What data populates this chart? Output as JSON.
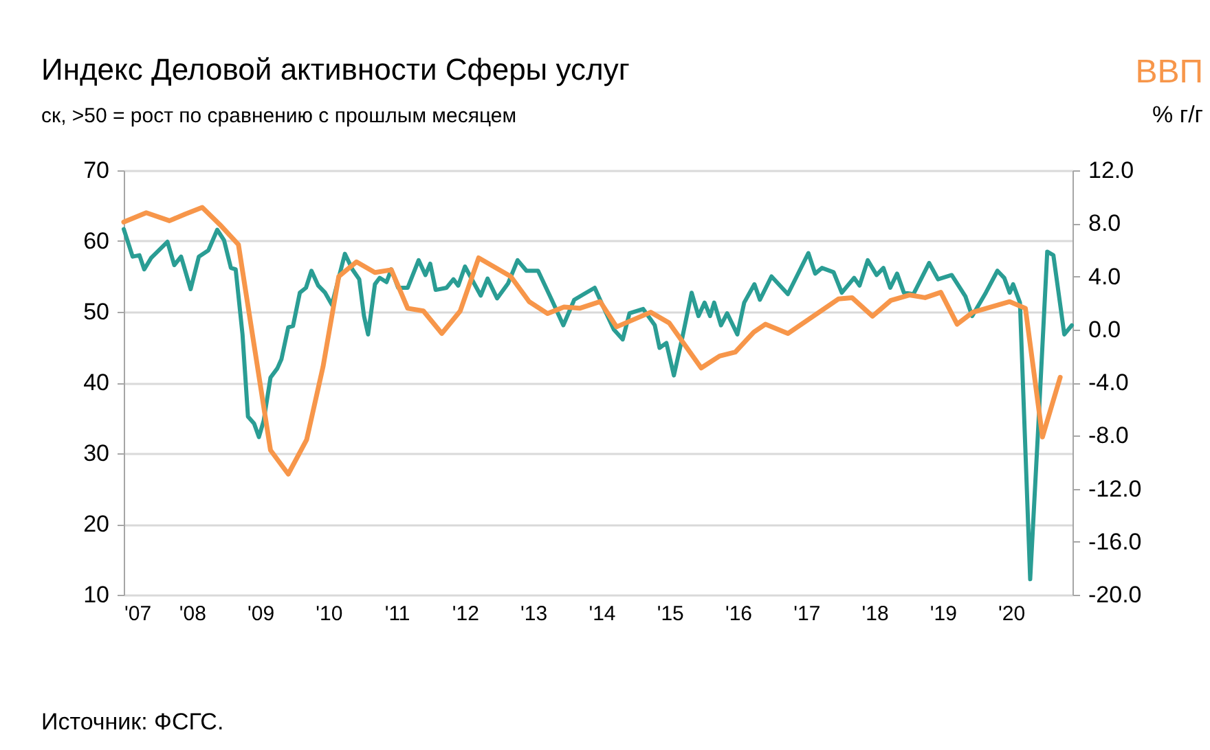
{
  "chart_data": {
    "type": "line",
    "title": "Индекс Деловой активности Сферы услуг",
    "ylabel": "ск, >50 = рост по сравнению с прошлым месяцем",
    "y2label": "% г/г",
    "annotations": [
      "Источник: ФСГС."
    ],
    "xlim": [
      2007,
      2020.9
    ],
    "xticks": [
      {
        "value": 2007,
        "label": "'07"
      },
      {
        "value": 2008,
        "label": "'08"
      },
      {
        "value": 2009,
        "label": "'09"
      },
      {
        "value": 2010,
        "label": "'10"
      },
      {
        "value": 2011,
        "label": "'11"
      },
      {
        "value": 2012,
        "label": "'12"
      },
      {
        "value": 2013,
        "label": "'13"
      },
      {
        "value": 2014,
        "label": "'14"
      },
      {
        "value": 2015,
        "label": "'15"
      },
      {
        "value": 2016,
        "label": "'16"
      },
      {
        "value": 2017,
        "label": "'17"
      },
      {
        "value": 2018,
        "label": "'18"
      },
      {
        "value": 2019,
        "label": "'19"
      },
      {
        "value": 2020,
        "label": "'20"
      }
    ],
    "ylim": [
      10,
      70
    ],
    "yticks": [
      10,
      20,
      30,
      40,
      50,
      60,
      70
    ],
    "y2lim": [
      -20,
      12
    ],
    "y2ticks": [
      {
        "value": -20,
        "label": "-20.0"
      },
      {
        "value": -16,
        "label": "-16.0"
      },
      {
        "value": -12,
        "label": "-12.0"
      },
      {
        "value": -8,
        "label": "-8.0"
      },
      {
        "value": -4,
        "label": "-4.0"
      },
      {
        "value": 0,
        "label": "0.0"
      },
      {
        "value": 4,
        "label": "4.0"
      },
      {
        "value": 8,
        "label": "8.0"
      },
      {
        "value": 12,
        "label": "12.0"
      }
    ],
    "grid": "y",
    "marker": "none",
    "line_style": "solid",
    "series": [
      {
        "color": "#2a9d94",
        "x": [
          2007.0,
          2007.13,
          2007.23,
          2007.3,
          2007.4,
          2007.64,
          2007.74,
          2007.84,
          2007.98,
          2008.1,
          2008.24,
          2008.37,
          2008.47,
          2008.57,
          2008.64,
          2008.74,
          2008.82,
          2008.91,
          2008.98,
          2009.05,
          2009.15,
          2009.25,
          2009.31,
          2009.41,
          2009.48,
          2009.58,
          2009.67,
          2009.75,
          2009.85,
          2009.95,
          2010.05,
          2010.15,
          2010.24,
          2010.35,
          2010.45,
          2010.52,
          2010.58,
          2010.68,
          2010.75,
          2010.85,
          2010.92,
          2011.02,
          2011.16,
          2011.32,
          2011.42,
          2011.49,
          2011.57,
          2011.73,
          2011.83,
          2011.9,
          2012.0,
          2012.1,
          2012.23,
          2012.33,
          2012.47,
          2012.63,
          2012.77,
          2012.9,
          2013.07,
          2013.27,
          2013.44,
          2013.6,
          2013.74,
          2013.9,
          2014.04,
          2014.18,
          2014.31,
          2014.41,
          2014.61,
          2014.78,
          2014.85,
          2014.95,
          2015.06,
          2015.18,
          2015.32,
          2015.42,
          2015.51,
          2015.59,
          2015.65,
          2015.75,
          2015.84,
          2015.99,
          2016.09,
          2016.24,
          2016.32,
          2016.49,
          2016.73,
          2017.03,
          2017.13,
          2017.23,
          2017.4,
          2017.52,
          2017.7,
          2017.78,
          2017.9,
          2018.03,
          2018.13,
          2018.23,
          2018.33,
          2018.43,
          2018.57,
          2018.8,
          2018.93,
          2019.13,
          2019.33,
          2019.43,
          2019.63,
          2019.8,
          2019.9,
          2019.98,
          2020.03,
          2020.13,
          2020.28,
          2020.4,
          2020.53,
          2020.62,
          2020.78,
          2020.89
        ],
        "values": [
          61.7,
          57.8,
          58,
          56,
          57.6,
          59.9,
          56.6,
          57.8,
          53.2,
          57.8,
          58.7,
          61.6,
          60.1,
          56.2,
          56,
          46.8,
          35.2,
          34.2,
          32.3,
          34.6,
          40.7,
          42,
          43.3,
          47.8,
          48,
          52.7,
          53.4,
          55.8,
          53.7,
          52.7,
          51,
          54.8,
          58.2,
          56,
          54.6,
          49.4,
          46.8,
          53.9,
          54.8,
          54.2,
          56,
          53.4,
          53.4,
          57.3,
          55.2,
          56.8,
          53.1,
          53.4,
          54.6,
          53.7,
          56.4,
          54.6,
          52.3,
          54.7,
          51.9,
          54.0,
          57.3,
          55.8,
          55.8,
          51.7,
          48.1,
          51.7,
          52.5,
          53.4,
          50.4,
          47.5,
          46.1,
          49.8,
          50.4,
          48.1,
          44.9,
          45.6,
          41.0,
          46.2,
          52.7,
          49.4,
          51.3,
          49.4,
          51.3,
          48.1,
          49.8,
          46.8,
          51.3,
          53.9,
          51.7,
          55.0,
          52.5,
          58.3,
          55.4,
          56.2,
          55.6,
          52.7,
          54.8,
          53.7,
          57.3,
          55.2,
          56.2,
          53.4,
          55.4,
          52.7,
          52.5,
          56.9,
          54.6,
          55.2,
          52.2,
          49.4,
          52.7,
          55.8,
          54.8,
          52.7,
          53.9,
          51.3,
          12.2,
          34,
          58.5,
          58.0,
          46.8,
          48.1
        ]
      },
      {
        "name": "ВВП",
        "axis": "y2",
        "color": "#f7964a",
        "x": [
          2007.0,
          2007.33,
          2007.67,
          2007.9,
          2008.15,
          2008.41,
          2008.68,
          2009.15,
          2009.41,
          2009.68,
          2009.92,
          2010.15,
          2010.41,
          2010.68,
          2010.92,
          2011.16,
          2011.39,
          2011.66,
          2011.93,
          2012.2,
          2012.67,
          2012.94,
          2013.21,
          2013.45,
          2013.68,
          2013.98,
          2014.22,
          2014.72,
          2014.99,
          2015.46,
          2015.73,
          2015.96,
          2016.23,
          2016.4,
          2016.73,
          2017.47,
          2017.67,
          2017.97,
          2018.24,
          2018.51,
          2018.74,
          2018.97,
          2019.21,
          2019.44,
          2019.98,
          2020.21,
          2020.46,
          2020.72
        ],
        "values": [
          8.1,
          8.8,
          8.2,
          8.7,
          9.2,
          7.9,
          6.4,
          -9.1,
          -10.9,
          -8.3,
          -2.8,
          4.0,
          5.1,
          4.3,
          4.5,
          1.6,
          1.4,
          -0.3,
          1.4,
          5.4,
          4.0,
          2.1,
          1.2,
          1.7,
          1.6,
          2.1,
          0.2,
          1.3,
          0.5,
          -2.9,
          -2.0,
          -1.7,
          -0.2,
          0.4,
          -0.3,
          2.3,
          2.4,
          1.0,
          2.2,
          2.6,
          2.4,
          2.8,
          0.4,
          1.3,
          2.1,
          1.6,
          -8.1,
          -3.6
        ]
      }
    ]
  }
}
